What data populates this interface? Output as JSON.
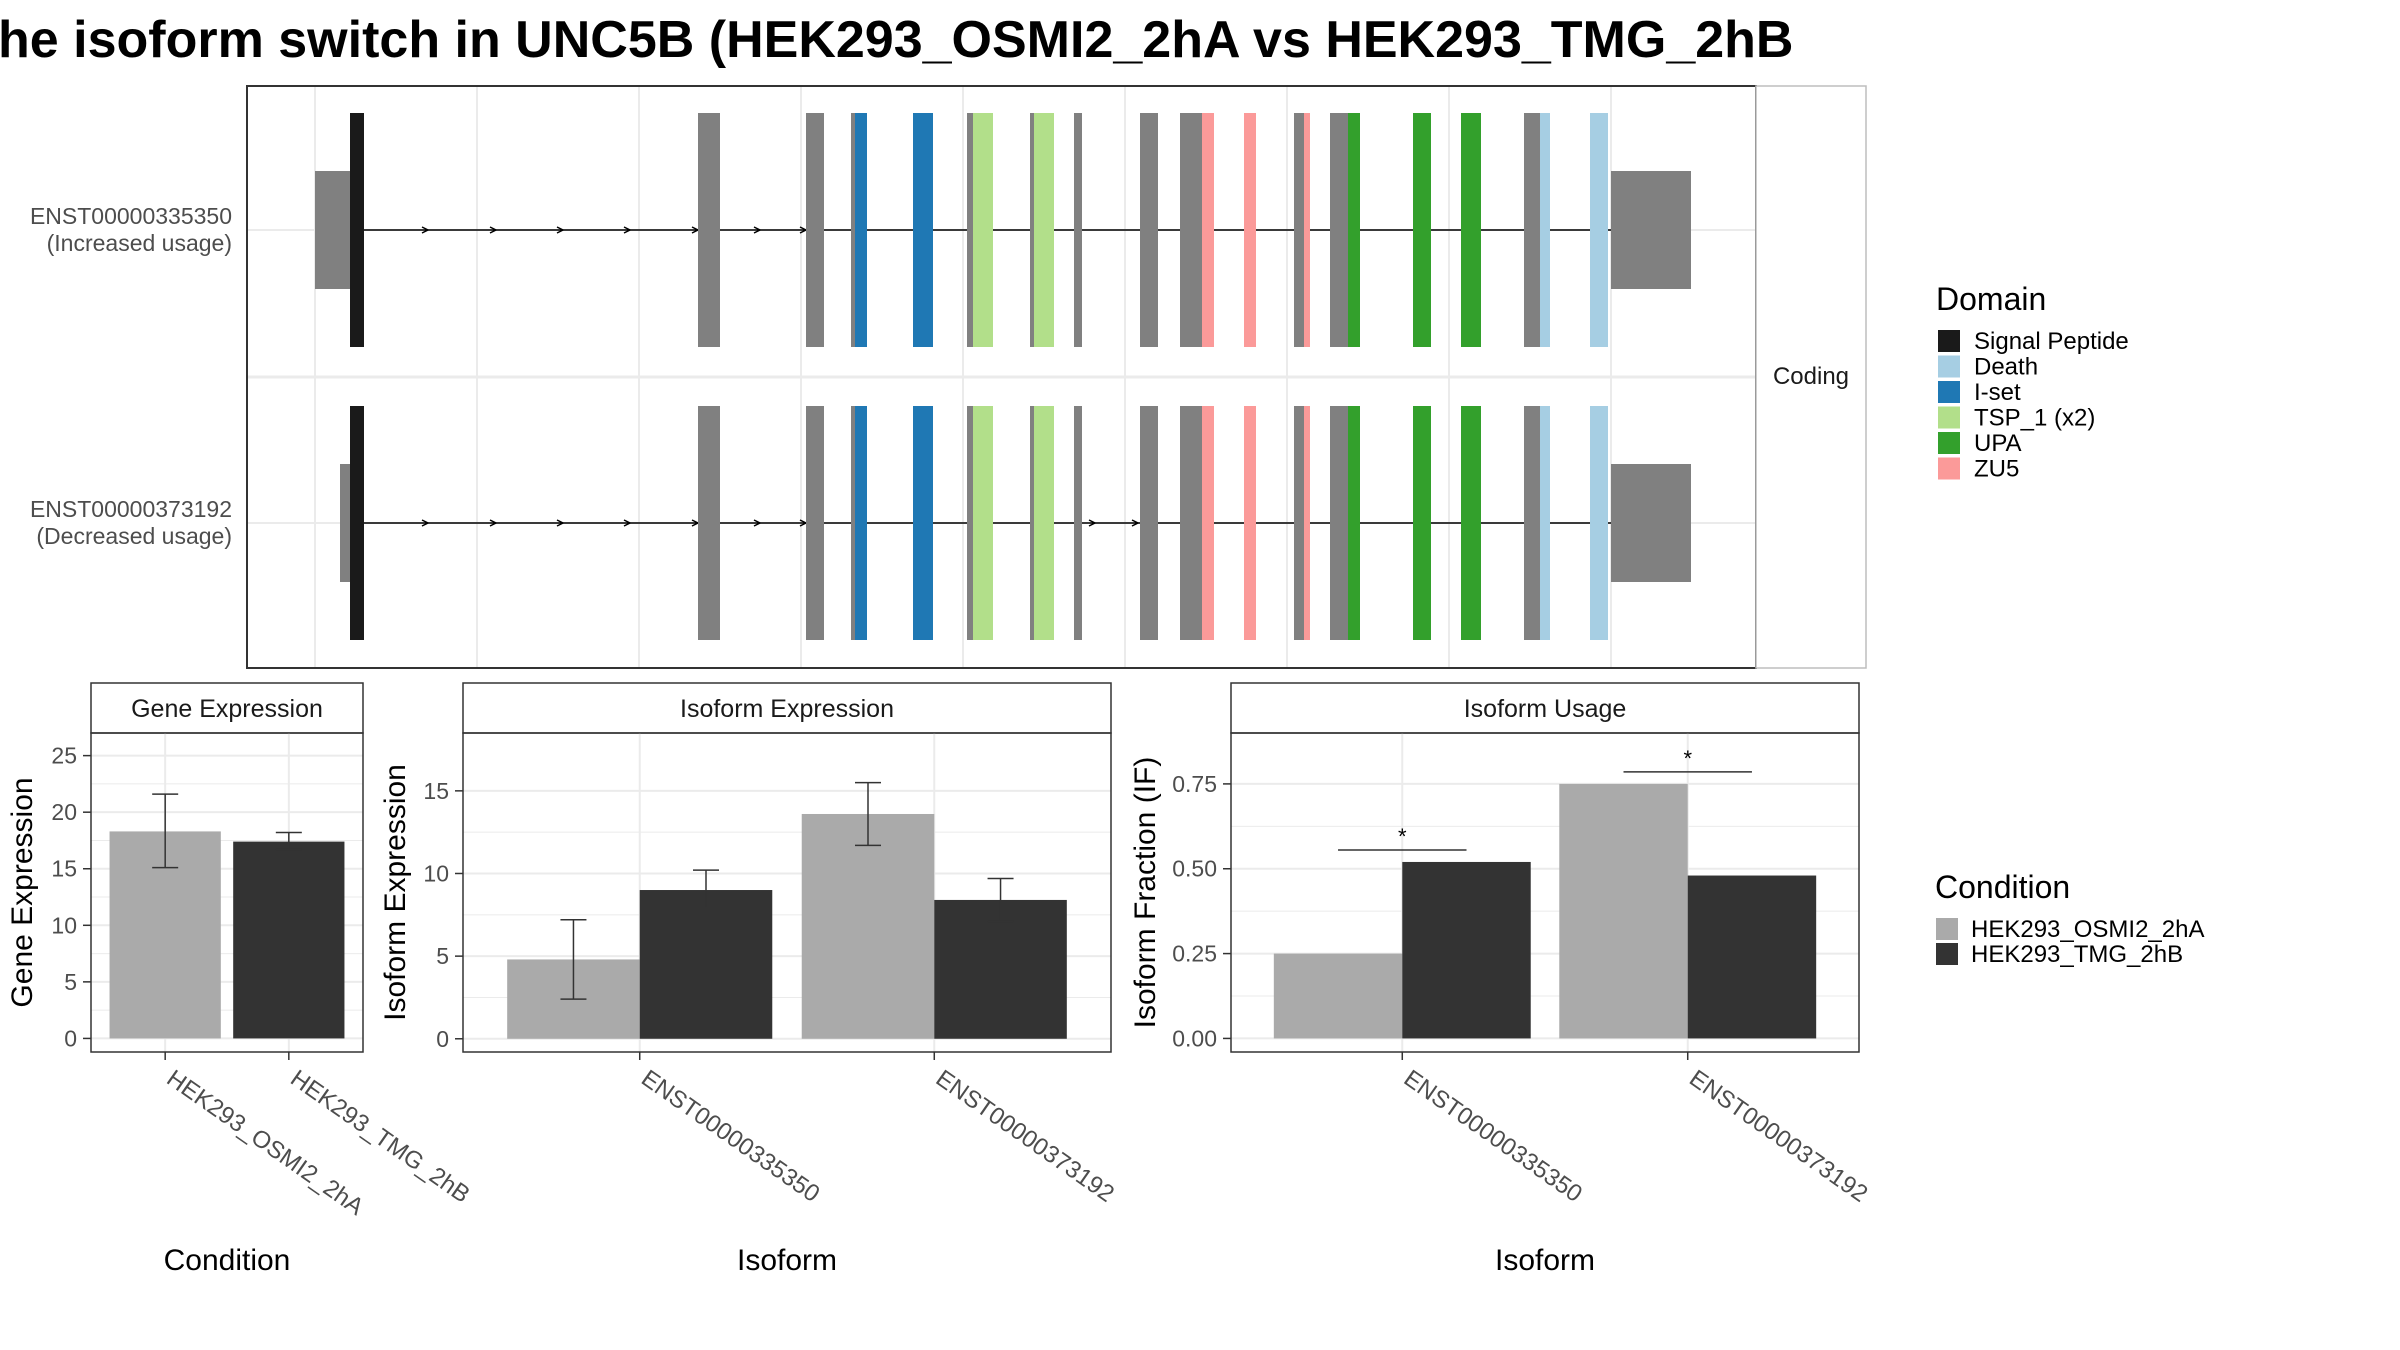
{
  "title": "he isoform switch in UNC5B (HEK293_OSMI2_2hA vs HEK293_TMG_2hB",
  "colors": {
    "exon": "#808080",
    "cond_a": "#aaaaaa",
    "cond_b": "#333333",
    "panel_border": "#333333",
    "grid": "#ebebeb",
    "strip_border": "#bdbdbd"
  },
  "chart_data": [
    {
      "type": "transcript-structure",
      "facet_label": "Coding",
      "transcripts": [
        {
          "id": "ENST00000335350",
          "label": "(Increased usage)"
        },
        {
          "id": "ENST00000373192",
          "label": "(Decreased usage)"
        }
      ],
      "legend": {
        "title": "Domain",
        "entries": [
          {
            "name": "Signal Peptide",
            "color": "#1a1a1a"
          },
          {
            "name": "Death",
            "color": "#a6cee3"
          },
          {
            "name": "I-set",
            "color": "#1f78b4"
          },
          {
            "name": "TSP_1 (x2)",
            "color": "#b2df8a"
          },
          {
            "name": "UPA",
            "color": "#33a02c"
          },
          {
            "name": "ZU5",
            "color": "#fb9a99"
          }
        ]
      }
    },
    {
      "type": "bar",
      "strip": "Gene Expression",
      "xlabel": "Condition",
      "ylabel": "Gene Expression",
      "ylim": [
        -1.2,
        27
      ],
      "yticks": [
        0,
        5,
        10,
        15,
        20,
        25
      ],
      "categories": [
        "HEK293_OSMI2_2hA",
        "HEK293_TMG_2hB"
      ],
      "values": [
        18.3,
        17.4
      ],
      "errors": [
        [
          15.1,
          21.6
        ],
        [
          16.7,
          18.2
        ]
      ]
    },
    {
      "type": "bar",
      "strip": "Isoform Expression",
      "xlabel": "Isoform",
      "ylabel": "Isoform Expression",
      "ylim": [
        -0.8,
        18.5
      ],
      "yticks": [
        0,
        5,
        10,
        15
      ],
      "categories": [
        "ENST00000335350",
        "ENST00000373192"
      ],
      "series": [
        {
          "name": "HEK293_OSMI2_2hA",
          "values": [
            4.8,
            13.6
          ],
          "errors": [
            [
              2.4,
              7.2
            ],
            [
              11.7,
              15.5
            ]
          ]
        },
        {
          "name": "HEK293_TMG_2hB",
          "values": [
            9.0,
            8.4
          ],
          "errors": [
            [
              7.9,
              10.2
            ],
            [
              7.1,
              9.7
            ]
          ]
        }
      ]
    },
    {
      "type": "bar",
      "strip": "Isoform Usage",
      "xlabel": "Isoform",
      "ylabel": "Isoform Fraction (IF)",
      "ylim": [
        -0.04,
        0.9
      ],
      "yticks": [
        0,
        0.25,
        0.5,
        0.75
      ],
      "ytick_labels": [
        "0.00",
        "0.25",
        "0.50",
        "0.75"
      ],
      "categories": [
        "ENST00000335350",
        "ENST00000373192"
      ],
      "series": [
        {
          "name": "HEK293_OSMI2_2hA",
          "values": [
            0.25,
            0.75
          ]
        },
        {
          "name": "HEK293_TMG_2hB",
          "values": [
            0.52,
            0.48
          ]
        }
      ],
      "significance": [
        "*",
        "*"
      ]
    }
  ],
  "condition_legend": {
    "title": "Condition",
    "entries": [
      "HEK293_OSMI2_2hA",
      "HEK293_TMG_2hB"
    ]
  }
}
